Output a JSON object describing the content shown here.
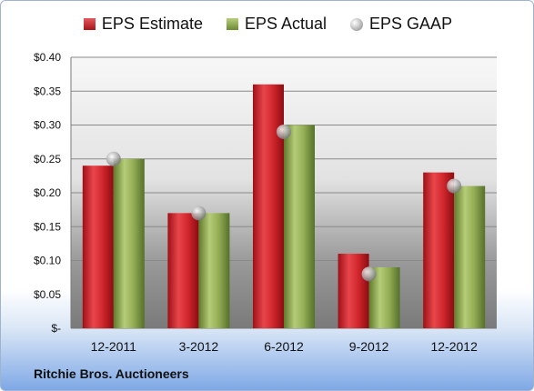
{
  "chart_data": {
    "type": "bar",
    "categories": [
      "12-2011",
      "3-2012",
      "6-2012",
      "9-2012",
      "12-2012"
    ],
    "series": [
      {
        "name": "EPS Estimate",
        "kind": "bar",
        "values": [
          0.24,
          0.17,
          0.36,
          0.11,
          0.23
        ],
        "color": "#cc2127"
      },
      {
        "name": "EPS Actual",
        "kind": "bar",
        "values": [
          0.25,
          0.17,
          0.3,
          0.09,
          0.21
        ],
        "color": "#8fad4e"
      },
      {
        "name": "EPS GAAP",
        "kind": "marker",
        "values": [
          0.25,
          0.17,
          0.29,
          0.08,
          0.21
        ],
        "color": "#a8a8a8"
      }
    ],
    "y_ticks": [
      "$-",
      "$0.05",
      "$0.10",
      "$0.15",
      "$0.20",
      "$0.25",
      "$0.30",
      "$0.35",
      "$0.40"
    ],
    "ylim": [
      0,
      0.4
    ],
    "grid": true,
    "legend_position": "top-center",
    "title": "",
    "xlabel": "",
    "ylabel": ""
  },
  "footer": {
    "company": "Ritchie Bros. Auctioneers"
  }
}
